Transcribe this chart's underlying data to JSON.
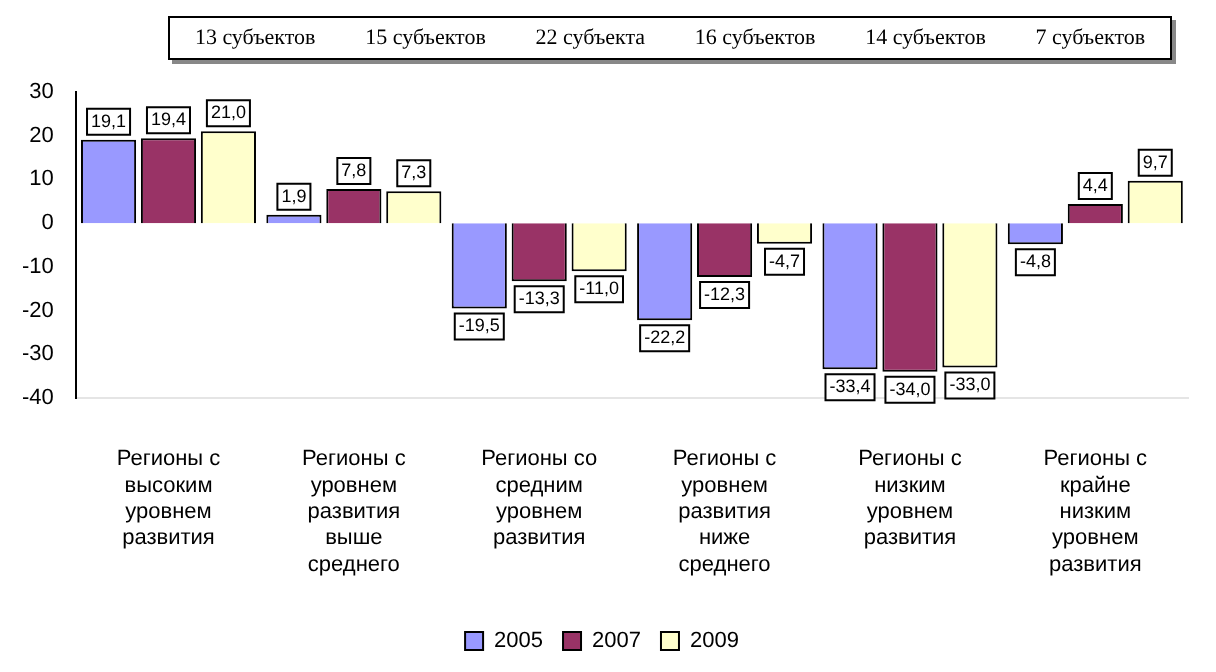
{
  "chart_data": {
    "type": "bar",
    "categories": [
      "Регионы с высоким уровнем развития",
      "Регионы с уровнем развития выше среднего",
      "Регионы со средним уровнем развития",
      "Регионы с уровнем развития ниже среднего",
      "Регионы с низким уровнем развития",
      "Регионы с крайне низким уровнем развития"
    ],
    "series": [
      {
        "name": "2005",
        "color": "#9999ff",
        "values": [
          19.1,
          1.9,
          -19.5,
          -22.2,
          -33.4,
          -4.8
        ],
        "value_labels": [
          "19,1",
          "1,9",
          "-19,5",
          "-22,2",
          "-33,4",
          "-4,8"
        ]
      },
      {
        "name": "2007",
        "color": "#993366",
        "values": [
          19.4,
          7.8,
          -13.3,
          -12.3,
          -34.0,
          4.4
        ],
        "value_labels": [
          "19,4",
          "7,8",
          "-13,3",
          "-12,3",
          "-34,0",
          "4,4"
        ]
      },
      {
        "name": "2009",
        "color": "#ffffcc",
        "values": [
          21.0,
          7.3,
          -11.0,
          -4.7,
          -33.0,
          9.7
        ],
        "value_labels": [
          "21,0",
          "7,3",
          "-11,0",
          "-4,7",
          "-33,0",
          "9,7"
        ]
      }
    ],
    "annotations": [
      "13 субъектов",
      "15 субъектов",
      "22 субъекта",
      "16 субъектов",
      "14 субъектов",
      "7 субъектов"
    ],
    "ylim": [
      -40,
      30
    ],
    "yticks": [
      -40,
      -30,
      -20,
      -10,
      0,
      10,
      20,
      30
    ],
    "grid": false,
    "legend": "bottom"
  }
}
